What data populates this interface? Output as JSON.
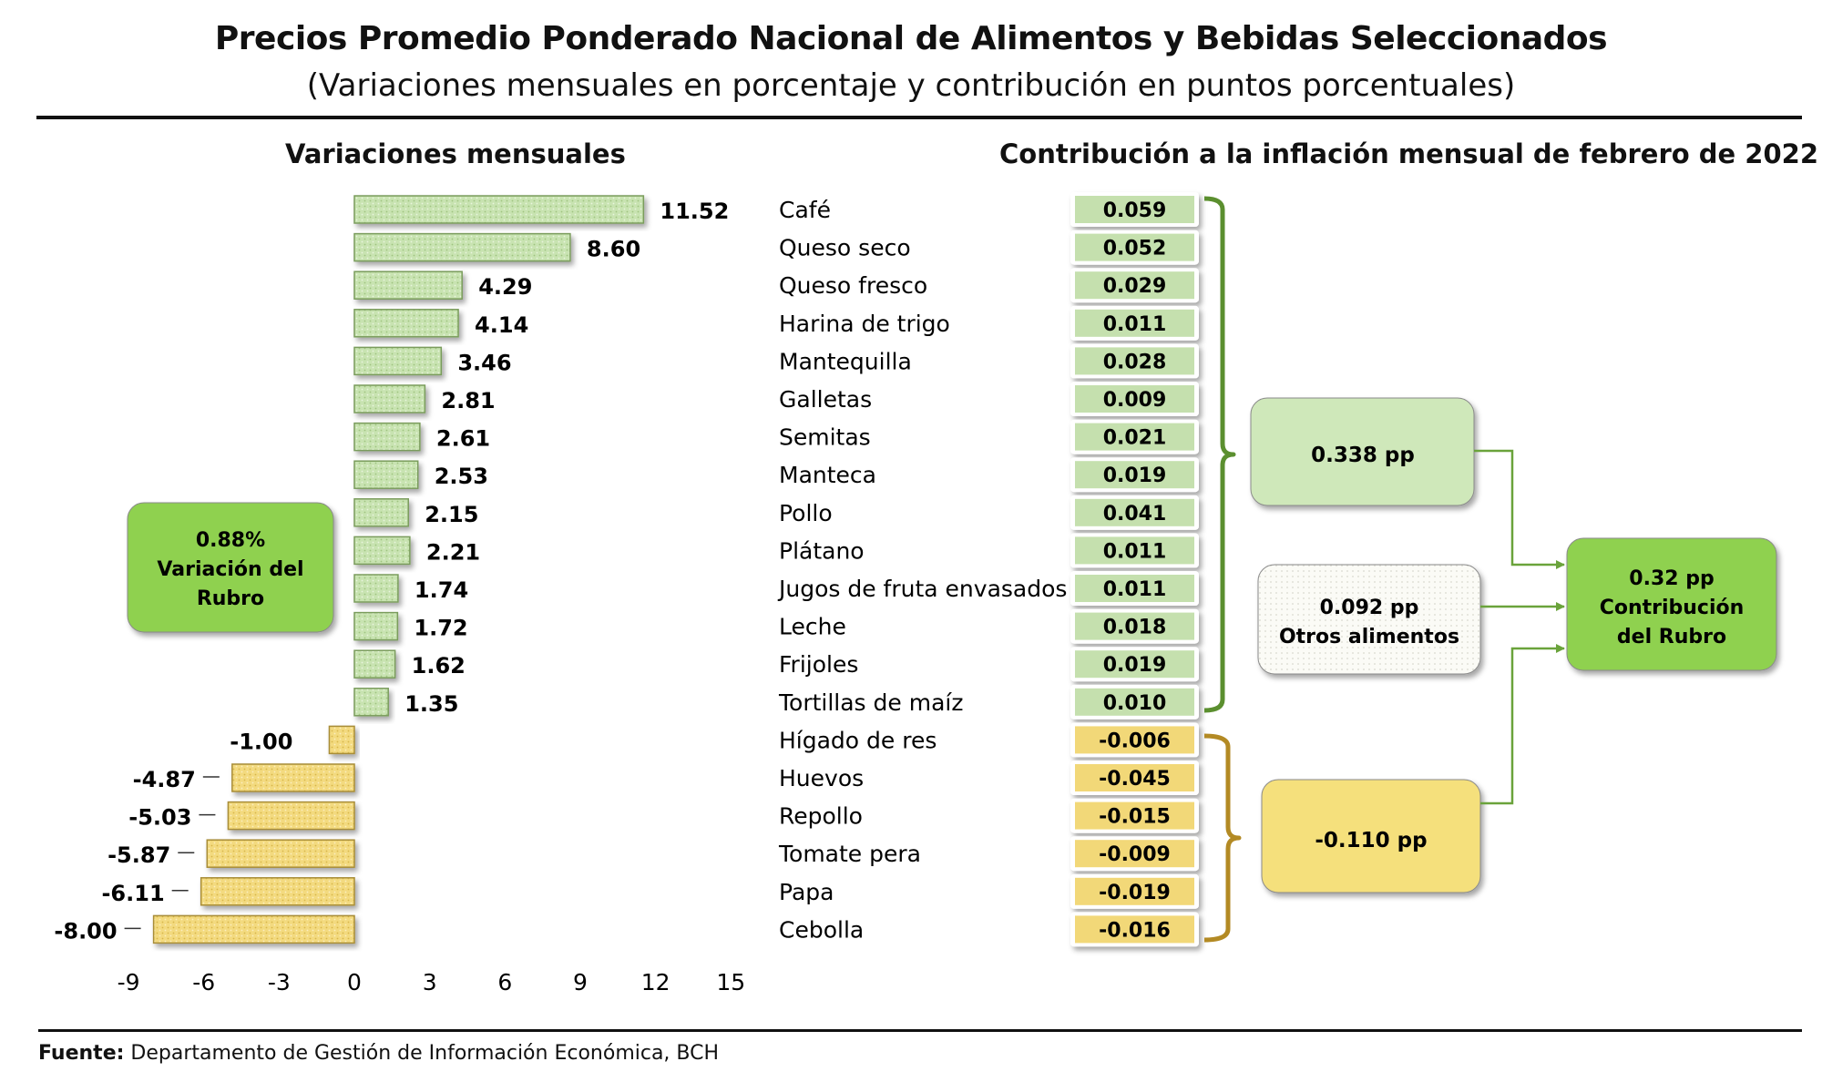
{
  "header": {
    "title": "Precios Promedio Ponderado Nacional de Alimentos y Bebidas Seleccionados",
    "subtitle": "(Variaciones mensuales en porcentaje y contribución en puntos porcentuales)"
  },
  "left_title": "Variaciones mensuales",
  "right_title": "Contribución a la inflación mensual de febrero de 2022",
  "rubro_variation": {
    "line1": "0.88%",
    "line2": "Variación del",
    "line3": "Rubro"
  },
  "group_positive": {
    "label": "0.338 pp"
  },
  "group_others": {
    "line1": "0.092 pp",
    "line2": "Otros alimentos"
  },
  "group_negative": {
    "label": "-0.110 pp"
  },
  "rubro_contribution": {
    "line1": "0.32 pp",
    "line2": "Contribución",
    "line3": "del Rubro"
  },
  "footer": {
    "label": "Fuente:",
    "text": " Departamento de Gestión de Información Económica, BCH"
  },
  "colors": {
    "positive_fill": "#c5e0ae",
    "negative_fill": "#f2d878",
    "positive_box": "#8fd14f",
    "negative_box": "#f5e07c",
    "bracket_green": "#5b8f2f",
    "bracket_gold": "#b38a24"
  },
  "chart_data": {
    "type": "bar",
    "orientation": "horizontal",
    "categories": [
      "Café",
      "Queso seco",
      "Queso fresco",
      "Harina de trigo",
      "Mantequilla",
      "Galletas",
      "Semitas",
      "Manteca",
      "Pollo",
      "Plátano",
      "Jugos de fruta envasados",
      "Leche",
      "Frijoles",
      "Tortillas de maíz",
      "Hígado de res",
      "Huevos",
      "Repollo",
      "Tomate pera",
      "Papa",
      "Cebolla"
    ],
    "value_labels": [
      "11.52",
      "8.60",
      "4.29",
      "4.14",
      "3.46",
      "2.81",
      "2.61",
      "2.53",
      "2.15",
      "2.21",
      "1.74",
      "1.72",
      "1.62",
      "1.35",
      "-1.00",
      "-4.87",
      "-5.03",
      "-5.87",
      "-6.11",
      "-8.00"
    ],
    "contribution_labels": [
      "0.059",
      "0.052",
      "0.029",
      "0.011",
      "0.028",
      "0.009",
      "0.021",
      "0.019",
      "0.041",
      "0.011",
      "0.011",
      "0.018",
      "0.019",
      "0.010",
      "-0.006",
      "-0.045",
      "-0.015",
      "-0.009",
      "-0.019",
      "-0.016"
    ],
    "series": [
      {
        "values": [
          11.52,
          8.6,
          4.29,
          4.14,
          3.46,
          2.81,
          2.61,
          2.53,
          2.15,
          2.21,
          1.74,
          1.72,
          1.62,
          1.35,
          -1.0,
          -4.87,
          -5.03,
          -5.87,
          -6.11,
          -8.0
        ]
      },
      {
        "values": [
          0.059,
          0.052,
          0.029,
          0.011,
          0.028,
          0.009,
          0.021,
          0.019,
          0.041,
          0.011,
          0.011,
          0.018,
          0.019,
          0.01,
          -0.006,
          -0.045,
          -0.015,
          -0.009,
          -0.019,
          -0.016
        ]
      }
    ],
    "xlim": [
      -9,
      15
    ],
    "xticks": [
      "-9",
      "-6",
      "-3",
      "0",
      "3",
      "6",
      "9",
      "12",
      "15"
    ],
    "grid": false,
    "legend": "none"
  }
}
